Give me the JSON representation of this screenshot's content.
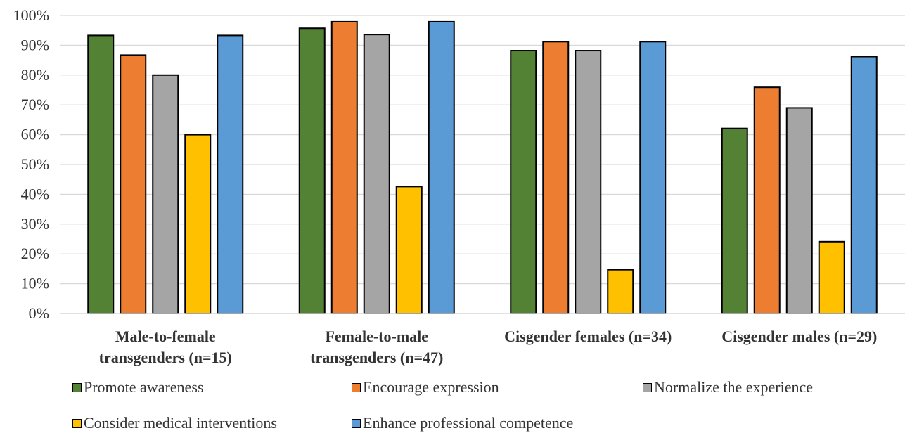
{
  "chart_data": {
    "type": "bar",
    "title": "",
    "xlabel": "",
    "ylabel": "",
    "ylim": [
      0,
      100
    ],
    "y_ticks": [
      "0%",
      "10%",
      "20%",
      "30%",
      "40%",
      "50%",
      "60%",
      "70%",
      "80%",
      "90%",
      "100%"
    ],
    "grid": true,
    "legend_position": "bottom",
    "categories": [
      [
        "Male-to-female",
        "transgenders (n=15)"
      ],
      [
        "Female-to-male",
        "transgenders (n=47)"
      ],
      [
        "Cisgender females (n=34)"
      ],
      [
        "Cisgender males (n=29)"
      ]
    ],
    "series": [
      {
        "name": "Promote awareness",
        "color": "#548235",
        "values": [
          93.3,
          95.7,
          88.2,
          62.1
        ]
      },
      {
        "name": "Encourage expression",
        "color": "#ED7D31",
        "values": [
          86.7,
          97.9,
          91.2,
          75.9
        ]
      },
      {
        "name": "Normalize the experience",
        "color": "#A5A5A5",
        "values": [
          80.0,
          93.6,
          88.2,
          69.0
        ]
      },
      {
        "name": "Consider medical interventions",
        "color": "#FFC000",
        "values": [
          60.0,
          42.6,
          14.7,
          24.1
        ]
      },
      {
        "name": "Enhance professional competence",
        "color": "#5B9BD5",
        "values": [
          93.3,
          97.9,
          91.2,
          86.2
        ]
      }
    ]
  }
}
